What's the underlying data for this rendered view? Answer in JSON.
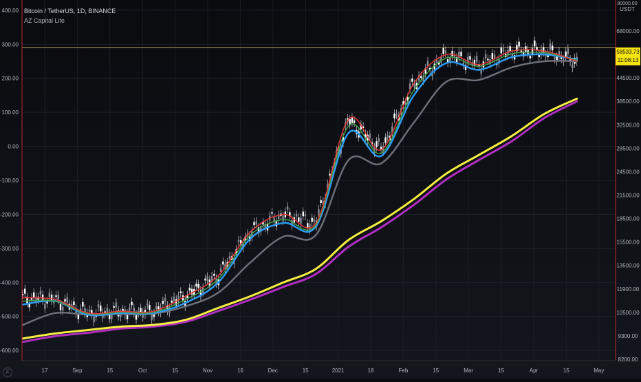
{
  "legend": {
    "symbol": "Bitcoin / TetherUS, 1D, BINANCE",
    "indicator": "AZ Capital Lite"
  },
  "price_badge": {
    "price": "58533.73",
    "countdown": "11:08:13"
  },
  "right_axis": {
    "currency": "USDT",
    "top_label": "80000.00",
    "labels": [
      "68000.00",
      "52000.00",
      "44500.00",
      "38500.00",
      "32500.00",
      "28500.00",
      "24500.00",
      "21500.00",
      "18500.00",
      "15500.00",
      "13500.00",
      "11900.00",
      "10500.00",
      "9300.00",
      "8200.00"
    ]
  },
  "settings_icon": "z-scale-icon",
  "colors": {
    "background": "#0a0b0f",
    "up_candle": "#ffffff",
    "down_candle": "#e0e0e0",
    "ema_red": "#e53935",
    "ema_green": "#43a047",
    "ema_blue": "#2b9bf4",
    "ema_gray": "#6b6f78",
    "ema_yellow": "#f5ef42",
    "ema_magenta": "#b02fc2",
    "threshold_line": "#b8a060",
    "axis_line": "#b8282c"
  },
  "chart_data": {
    "type": "line",
    "title": "Bitcoin / TetherUS, 1D, BINANCE",
    "x_tick_labels": [
      "17",
      "Sep",
      "15",
      "Oct",
      "15",
      "Nov",
      "16",
      "Dec",
      "15",
      "2021",
      "18",
      "Feb",
      "15",
      "Mar",
      "15",
      "Apr",
      "15",
      "May"
    ],
    "x": [
      "Aug 17",
      "Sep",
      "Sep 15",
      "Oct",
      "Oct 15",
      "Nov",
      "Nov 16",
      "Dec",
      "Dec 15",
      "2021",
      "Jan 18",
      "Feb",
      "Feb 15",
      "Mar",
      "Mar 15",
      "Apr",
      "Apr 15",
      "May"
    ],
    "left_axis": {
      "labels": [
        "400.00",
        "300.00",
        "200.00",
        "100.00",
        "0.00",
        "-100.00",
        "-200.00",
        "-300.00",
        "-400.00",
        "-500.00",
        "-600.00"
      ],
      "ylim": [
        -630,
        430
      ]
    },
    "threshold_level": 290,
    "series": [
      {
        "color_key": "ema_red",
        "values": [
          -445,
          -450,
          -490,
          -485,
          -485,
          -440,
          -380,
          -250,
          -200,
          -225,
          80,
          -10,
          185,
          270,
          240,
          280,
          280,
          250
        ]
      },
      {
        "color_key": "ema_green",
        "values": [
          -455,
          -455,
          -492,
          -488,
          -488,
          -450,
          -390,
          -260,
          -215,
          -230,
          60,
          -20,
          165,
          260,
          235,
          272,
          275,
          253
        ]
      },
      {
        "color_key": "ema_blue",
        "values": [
          -465,
          -455,
          -495,
          -490,
          -490,
          -460,
          -400,
          -270,
          -225,
          -235,
          40,
          -28,
          150,
          245,
          225,
          262,
          270,
          255
        ]
      },
      {
        "color_key": "ema_gray",
        "values": [
          -525,
          -490,
          -495,
          -493,
          -492,
          -470,
          -430,
          -340,
          -265,
          -260,
          -40,
          -50,
          70,
          190,
          195,
          232,
          250,
          250
        ]
      },
      {
        "color_key": "ema_yellow",
        "values": [
          -565,
          -550,
          -540,
          -530,
          -525,
          -510,
          -475,
          -440,
          -400,
          -360,
          -275,
          -220,
          -155,
          -80,
          -25,
          30,
          95,
          140
        ]
      },
      {
        "color_key": "ema_magenta",
        "values": [
          -575,
          -558,
          -548,
          -536,
          -530,
          -516,
          -484,
          -450,
          -413,
          -375,
          -295,
          -238,
          -172,
          -97,
          -40,
          15,
          83,
          132
        ]
      }
    ]
  }
}
